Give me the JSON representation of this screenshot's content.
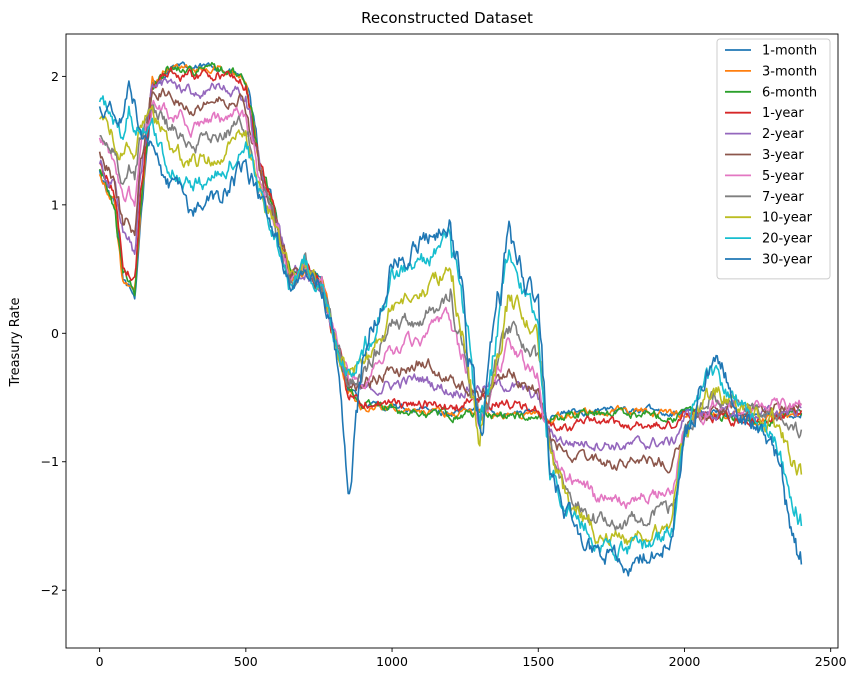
{
  "chart_data": {
    "type": "line",
    "title": "Reconstructed Dataset",
    "xlabel": "",
    "ylabel": "Treasury Rate",
    "xlim": [
      -115,
      2525
    ],
    "ylim": [
      -2.45,
      2.33
    ],
    "xticks": [
      0,
      500,
      1000,
      1500,
      2000,
      2500
    ],
    "yticks": [
      -2,
      -1,
      0,
      1,
      2
    ],
    "ytick_labels": [
      "−2",
      "−1",
      "0",
      "1",
      "2"
    ],
    "grid": false,
    "legend_position": "top-right",
    "series": [
      {
        "name": "1-month",
        "color": "#1f77b4",
        "x": [
          0,
          50,
          80,
          100,
          120,
          140,
          180,
          240,
          320,
          400,
          480,
          500,
          550,
          600,
          650,
          700,
          760,
          800,
          850,
          900,
          1000,
          1100,
          1200,
          1300,
          1400,
          1500,
          1540,
          1600,
          1700,
          1800,
          1900,
          1960,
          2000,
          2100,
          2200,
          2300,
          2400
        ],
        "y": [
          1.25,
          1.0,
          0.4,
          0.35,
          0.28,
          0.9,
          1.9,
          2.08,
          2.06,
          2.08,
          2.0,
          1.95,
          1.3,
          0.95,
          0.45,
          0.5,
          0.4,
          0.0,
          -0.45,
          -0.55,
          -0.58,
          -0.6,
          -0.62,
          -0.6,
          -0.62,
          -0.62,
          -0.65,
          -0.62,
          -0.6,
          -0.6,
          -0.6,
          -0.62,
          -0.6,
          -0.62,
          -0.65,
          -0.65,
          -0.62
        ]
      },
      {
        "name": "3-month",
        "color": "#ff7f0e",
        "x": [
          0,
          50,
          80,
          100,
          120,
          140,
          180,
          240,
          320,
          400,
          480,
          500,
          550,
          600,
          650,
          700,
          760,
          800,
          850,
          900,
          1000,
          1100,
          1200,
          1300,
          1400,
          1500,
          1540,
          1600,
          1700,
          1800,
          1900,
          1960,
          2000,
          2100,
          2200,
          2300,
          2400
        ],
        "y": [
          1.26,
          1.02,
          0.42,
          0.36,
          0.3,
          0.92,
          1.9,
          2.07,
          2.05,
          2.07,
          2.0,
          1.95,
          1.3,
          0.95,
          0.45,
          0.5,
          0.4,
          0.0,
          -0.45,
          -0.56,
          -0.58,
          -0.6,
          -0.63,
          -0.61,
          -0.63,
          -0.63,
          -0.66,
          -0.63,
          -0.61,
          -0.61,
          -0.61,
          -0.63,
          -0.61,
          -0.63,
          -0.66,
          -0.66,
          -0.63
        ]
      },
      {
        "name": "6-month",
        "color": "#2ca02c",
        "x": [
          0,
          50,
          80,
          100,
          120,
          140,
          180,
          240,
          320,
          400,
          480,
          500,
          550,
          600,
          650,
          700,
          760,
          800,
          850,
          900,
          1000,
          1100,
          1200,
          1300,
          1400,
          1500,
          1540,
          1600,
          1700,
          1800,
          1900,
          1960,
          2000,
          2100,
          2200,
          2300,
          2400
        ],
        "y": [
          1.28,
          1.0,
          0.45,
          0.4,
          0.33,
          0.95,
          1.92,
          2.08,
          2.05,
          2.07,
          2.0,
          1.95,
          1.3,
          0.95,
          0.45,
          0.5,
          0.4,
          0.0,
          -0.45,
          -0.55,
          -0.59,
          -0.62,
          -0.64,
          -0.62,
          -0.64,
          -0.65,
          -0.67,
          -0.64,
          -0.62,
          -0.62,
          -0.63,
          -0.65,
          -0.62,
          -0.64,
          -0.67,
          -0.68,
          -0.64
        ]
      },
      {
        "name": "1-year",
        "color": "#d62728",
        "x": [
          0,
          50,
          80,
          100,
          120,
          140,
          180,
          240,
          320,
          400,
          480,
          500,
          550,
          600,
          650,
          700,
          760,
          800,
          850,
          900,
          1000,
          1100,
          1200,
          1300,
          1400,
          1500,
          1540,
          1600,
          1700,
          1800,
          1900,
          1960,
          2000,
          2100,
          2200,
          2300,
          2400
        ],
        "y": [
          1.3,
          1.1,
          0.55,
          0.48,
          0.4,
          1.05,
          1.95,
          2.05,
          2.0,
          2.02,
          1.98,
          1.9,
          1.3,
          0.95,
          0.45,
          0.5,
          0.38,
          0.0,
          -0.45,
          -0.52,
          -0.55,
          -0.55,
          -0.58,
          -0.52,
          -0.55,
          -0.6,
          -0.7,
          -0.72,
          -0.7,
          -0.72,
          -0.72,
          -0.72,
          -0.62,
          -0.65,
          -0.68,
          -0.66,
          -0.6
        ]
      },
      {
        "name": "2-year",
        "color": "#9467bd",
        "x": [
          0,
          50,
          80,
          100,
          120,
          140,
          180,
          240,
          320,
          400,
          480,
          500,
          550,
          600,
          650,
          700,
          760,
          800,
          850,
          900,
          1000,
          1100,
          1200,
          1300,
          1400,
          1500,
          1540,
          1600,
          1700,
          1800,
          1900,
          1960,
          2000,
          2100,
          2200,
          2300,
          2400
        ],
        "y": [
          1.35,
          1.15,
          0.75,
          0.7,
          0.6,
          1.2,
          1.9,
          1.95,
          1.88,
          1.9,
          1.88,
          1.8,
          1.25,
          0.9,
          0.45,
          0.5,
          0.35,
          0.0,
          -0.42,
          -0.45,
          -0.4,
          -0.35,
          -0.45,
          -0.42,
          -0.4,
          -0.5,
          -0.78,
          -0.85,
          -0.85,
          -0.88,
          -0.85,
          -0.85,
          -0.65,
          -0.62,
          -0.65,
          -0.62,
          -0.58
        ]
      },
      {
        "name": "3-year",
        "color": "#8c564b",
        "x": [
          0,
          50,
          80,
          100,
          120,
          140,
          180,
          240,
          320,
          400,
          480,
          500,
          550,
          600,
          650,
          700,
          760,
          800,
          850,
          900,
          1000,
          1100,
          1200,
          1300,
          1400,
          1500,
          1540,
          1600,
          1700,
          1800,
          1900,
          1960,
          2000,
          2100,
          2200,
          2300,
          2400
        ],
        "y": [
          1.42,
          1.2,
          0.85,
          0.9,
          0.75,
          1.3,
          1.88,
          1.88,
          1.78,
          1.82,
          1.82,
          1.75,
          1.2,
          0.88,
          0.42,
          0.52,
          0.35,
          0.0,
          -0.4,
          -0.4,
          -0.3,
          -0.22,
          -0.35,
          -0.5,
          -0.3,
          -0.45,
          -0.82,
          -0.95,
          -1.0,
          -1.02,
          -1.0,
          -1.0,
          -0.7,
          -0.6,
          -0.62,
          -0.58,
          -0.55
        ]
      },
      {
        "name": "5-year",
        "color": "#e377c2",
        "x": [
          0,
          50,
          80,
          100,
          120,
          140,
          180,
          240,
          320,
          400,
          480,
          500,
          550,
          600,
          650,
          700,
          760,
          800,
          850,
          900,
          1000,
          1100,
          1200,
          1300,
          1400,
          1500,
          1540,
          1600,
          1700,
          1800,
          1900,
          1960,
          2000,
          2100,
          2200,
          2300,
          2400
        ],
        "y": [
          1.5,
          1.3,
          1.05,
          1.1,
          1.0,
          1.4,
          1.82,
          1.72,
          1.62,
          1.65,
          1.7,
          1.65,
          1.15,
          0.85,
          0.4,
          0.52,
          0.35,
          0.0,
          -0.38,
          -0.35,
          -0.1,
          -0.05,
          0.1,
          -0.65,
          -0.1,
          -0.35,
          -0.9,
          -1.1,
          -1.3,
          -1.3,
          -1.25,
          -1.2,
          -0.75,
          -0.55,
          -0.6,
          -0.55,
          -0.55
        ]
      },
      {
        "name": "7-year",
        "color": "#7f7f7f",
        "x": [
          0,
          50,
          80,
          100,
          120,
          140,
          180,
          240,
          320,
          400,
          480,
          500,
          550,
          600,
          650,
          700,
          760,
          800,
          850,
          900,
          1000,
          1100,
          1200,
          1300,
          1400,
          1500,
          1540,
          1600,
          1700,
          1800,
          1900,
          1960,
          2000,
          2100,
          2200,
          2300,
          2400
        ],
        "y": [
          1.58,
          1.4,
          1.2,
          1.3,
          1.2,
          1.5,
          1.78,
          1.6,
          1.48,
          1.52,
          1.62,
          1.58,
          1.12,
          0.82,
          0.4,
          0.55,
          0.35,
          0.0,
          -0.35,
          -0.3,
          0.05,
          0.1,
          0.3,
          -0.72,
          0.1,
          -0.25,
          -0.95,
          -1.2,
          -1.45,
          -1.48,
          -1.4,
          -1.35,
          -0.78,
          -0.5,
          -0.6,
          -0.6,
          -0.75
        ]
      },
      {
        "name": "10-year",
        "color": "#bcbd22",
        "x": [
          0,
          50,
          80,
          100,
          120,
          140,
          180,
          240,
          320,
          400,
          480,
          500,
          550,
          600,
          650,
          700,
          760,
          800,
          850,
          900,
          1000,
          1100,
          1200,
          1300,
          1400,
          1500,
          1540,
          1600,
          1700,
          1800,
          1900,
          1960,
          2000,
          2100,
          2200,
          2300,
          2400
        ],
        "y": [
          1.68,
          1.5,
          1.4,
          1.5,
          1.4,
          1.6,
          1.72,
          1.45,
          1.32,
          1.38,
          1.52,
          1.5,
          1.08,
          0.8,
          0.38,
          0.55,
          0.35,
          0.0,
          -0.32,
          -0.25,
          0.2,
          0.3,
          0.5,
          -0.75,
          0.3,
          -0.1,
          -1.0,
          -1.3,
          -1.55,
          -1.6,
          -1.55,
          -1.45,
          -0.8,
          -0.42,
          -0.62,
          -0.7,
          -1.1
        ]
      },
      {
        "name": "20-year",
        "color": "#17becf",
        "x": [
          0,
          50,
          80,
          100,
          120,
          140,
          180,
          240,
          320,
          400,
          480,
          500,
          550,
          600,
          650,
          700,
          760,
          800,
          850,
          900,
          1000,
          1100,
          1200,
          1300,
          1400,
          1500,
          1540,
          1600,
          1700,
          1800,
          1900,
          1960,
          2000,
          2100,
          2200,
          2300,
          2400
        ],
        "y": [
          1.78,
          1.62,
          1.55,
          1.75,
          1.6,
          1.62,
          1.58,
          1.3,
          1.15,
          1.22,
          1.4,
          1.45,
          1.05,
          0.78,
          0.38,
          0.55,
          0.35,
          0.0,
          -0.3,
          -0.15,
          0.45,
          0.55,
          0.75,
          -0.8,
          0.55,
          0.1,
          -1.05,
          -1.35,
          -1.62,
          -1.7,
          -1.62,
          -1.5,
          -0.8,
          -0.3,
          -0.62,
          -0.8,
          -1.5
        ]
      },
      {
        "name": "30-year",
        "color": "#1f77b4",
        "x": [
          0,
          50,
          80,
          100,
          120,
          140,
          180,
          240,
          320,
          400,
          480,
          500,
          550,
          600,
          650,
          700,
          760,
          800,
          850,
          900,
          1000,
          1100,
          1200,
          1300,
          1400,
          1500,
          1540,
          1600,
          1700,
          1800,
          1900,
          1960,
          2000,
          2100,
          2200,
          2300,
          2400
        ],
        "y": [
          1.82,
          1.7,
          1.72,
          1.88,
          1.75,
          1.5,
          1.45,
          1.15,
          0.95,
          1.05,
          1.25,
          1.38,
          1.0,
          0.75,
          0.38,
          0.55,
          0.35,
          0.0,
          -1.2,
          -0.2,
          0.55,
          0.7,
          0.9,
          -0.85,
          0.7,
          0.2,
          -1.1,
          -1.4,
          -1.7,
          -1.8,
          -1.7,
          -1.55,
          -0.8,
          -0.15,
          -0.6,
          -0.9,
          -1.8
        ]
      }
    ]
  }
}
